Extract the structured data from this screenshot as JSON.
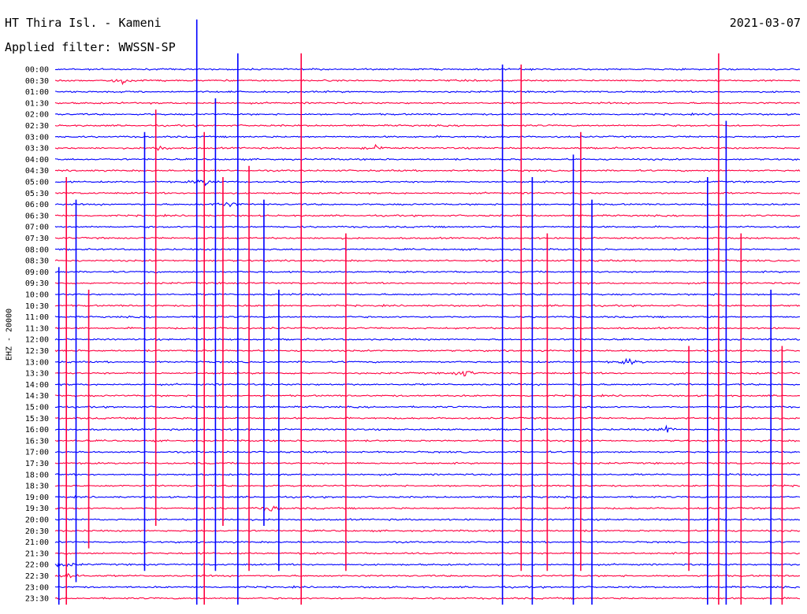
{
  "header": {
    "station": "HT Thira Isl. - Kameni",
    "filter": "Applied filter: WWSSN-SP",
    "date": "2021-03-07",
    "channel": "EHZ - 20000"
  },
  "chart_data": {
    "type": "line",
    "title": "HT Thira Isl. - Kameni",
    "subtitle": "Applied filter: WWSSN-SP",
    "ylabel": "EHZ - 20000",
    "date": "2021-03-07",
    "row_labels": [
      "00:00",
      "00:30",
      "01:00",
      "01:30",
      "02:00",
      "02:30",
      "03:00",
      "03:30",
      "04:00",
      "04:30",
      "05:00",
      "05:30",
      "06:00",
      "06:30",
      "07:00",
      "07:30",
      "08:00",
      "08:30",
      "09:00",
      "09:30",
      "10:00",
      "10:30",
      "11:00",
      "11:30",
      "12:00",
      "12:30",
      "13:00",
      "13:30",
      "14:00",
      "14:30",
      "15:00",
      "15:30",
      "16:00",
      "16:30",
      "17:00",
      "17:30",
      "18:00",
      "18:30",
      "19:00",
      "19:30",
      "20:00",
      "20:30",
      "21:00",
      "21:30",
      "22:00",
      "22:30",
      "23:00",
      "23:30"
    ],
    "colors": [
      "#0000ff",
      "#ff0040"
    ],
    "events": [
      {
        "row": 1,
        "pos": 0.09,
        "amp": 1.0
      },
      {
        "row": 7,
        "pos": 0.14,
        "amp": 0.8
      },
      {
        "row": 7,
        "pos": 0.43,
        "amp": 0.6
      },
      {
        "row": 10,
        "pos": 0.2,
        "amp": 1.0
      },
      {
        "row": 12,
        "pos": 0.23,
        "amp": 1.0
      },
      {
        "row": 27,
        "pos": 0.55,
        "amp": 1.0
      },
      {
        "row": 26,
        "pos": 0.77,
        "amp": 0.9
      },
      {
        "row": 32,
        "pos": 0.82,
        "amp": 1.0
      },
      {
        "row": 39,
        "pos": 0.29,
        "amp": 1.0
      },
      {
        "row": 44,
        "pos": 0.01,
        "amp": 1.0
      },
      {
        "row": 45,
        "pos": 0.02,
        "amp": 1.0
      }
    ],
    "spikes": [
      {
        "pos": 0.005,
        "rows": [
          18,
          47
        ]
      },
      {
        "pos": 0.015,
        "rows": [
          10,
          47
        ]
      },
      {
        "pos": 0.028,
        "rows": [
          12,
          45
        ]
      },
      {
        "pos": 0.045,
        "rows": [
          20,
          42
        ]
      },
      {
        "pos": 0.12,
        "rows": [
          6,
          44
        ]
      },
      {
        "pos": 0.135,
        "rows": [
          4,
          40
        ]
      },
      {
        "pos": 0.19,
        "rows": [
          -4,
          47
        ]
      },
      {
        "pos": 0.2,
        "rows": [
          6,
          47
        ]
      },
      {
        "pos": 0.215,
        "rows": [
          3,
          44
        ]
      },
      {
        "pos": 0.225,
        "rows": [
          10,
          40
        ]
      },
      {
        "pos": 0.245,
        "rows": [
          -1,
          47
        ]
      },
      {
        "pos": 0.26,
        "rows": [
          9,
          44
        ]
      },
      {
        "pos": 0.28,
        "rows": [
          12,
          40
        ]
      },
      {
        "pos": 0.33,
        "rows": [
          -1,
          47
        ]
      },
      {
        "pos": 0.3,
        "rows": [
          20,
          44
        ]
      },
      {
        "pos": 0.39,
        "rows": [
          15,
          44
        ]
      },
      {
        "pos": 0.6,
        "rows": [
          0,
          47
        ]
      },
      {
        "pos": 0.625,
        "rows": [
          0,
          44
        ]
      },
      {
        "pos": 0.64,
        "rows": [
          10,
          47
        ]
      },
      {
        "pos": 0.66,
        "rows": [
          15,
          44
        ]
      },
      {
        "pos": 0.695,
        "rows": [
          8,
          47
        ]
      },
      {
        "pos": 0.705,
        "rows": [
          6,
          44
        ]
      },
      {
        "pos": 0.72,
        "rows": [
          12,
          47
        ]
      },
      {
        "pos": 0.85,
        "rows": [
          25,
          44
        ]
      },
      {
        "pos": 0.875,
        "rows": [
          10,
          47
        ]
      },
      {
        "pos": 0.89,
        "rows": [
          -1,
          47
        ]
      },
      {
        "pos": 0.9,
        "rows": [
          5,
          47
        ]
      },
      {
        "pos": 0.92,
        "rows": [
          15,
          47
        ]
      },
      {
        "pos": 0.96,
        "rows": [
          20,
          47
        ]
      },
      {
        "pos": 0.975,
        "rows": [
          25,
          47
        ]
      }
    ]
  }
}
